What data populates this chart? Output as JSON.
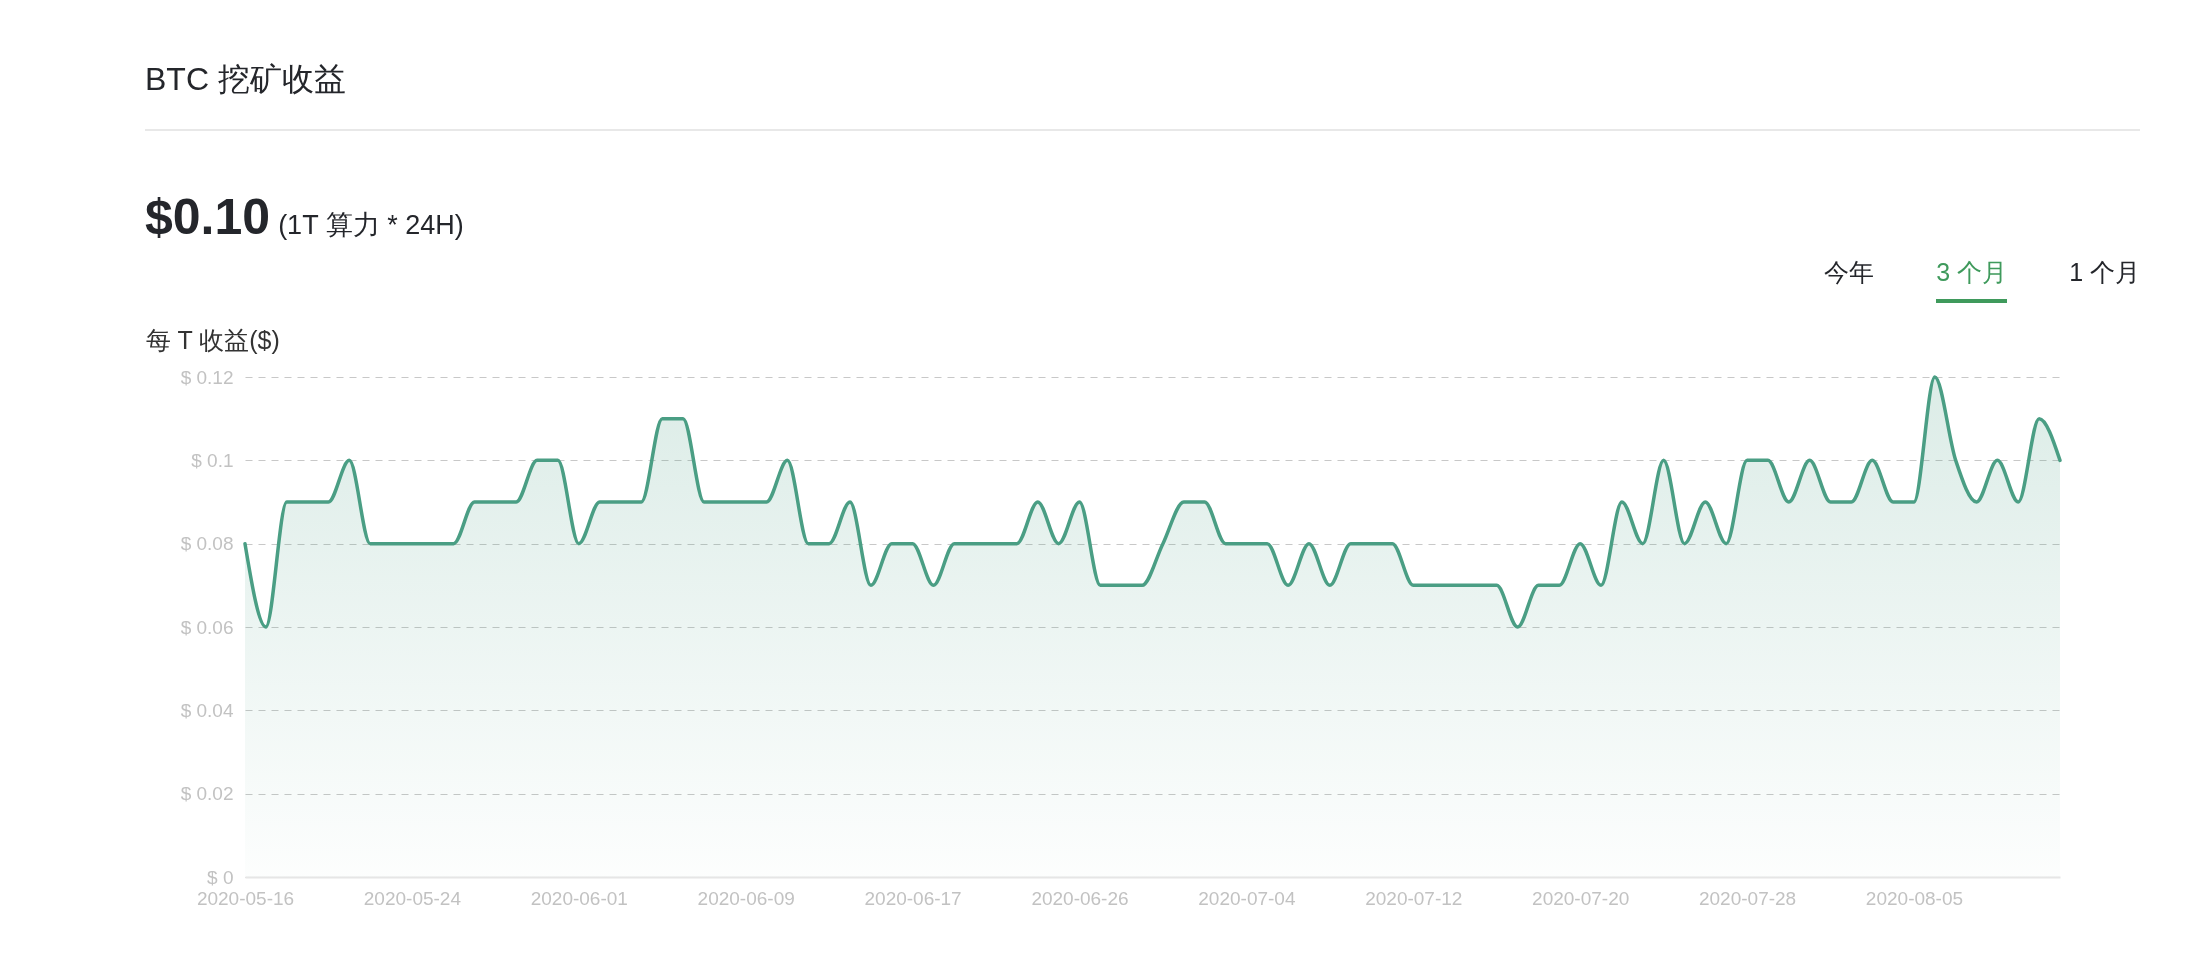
{
  "chart_data": {
    "type": "area",
    "title": "BTC 挖矿收益",
    "ylabel": "每 T 收益($)",
    "annotations": [
      "$0.10",
      "(1T 算力 * 24H)",
      "今年",
      "3 个月",
      "1 个月"
    ],
    "categories": [
      "2020-05-16",
      null,
      null,
      null,
      null,
      null,
      null,
      null,
      "2020-05-24",
      null,
      null,
      null,
      null,
      null,
      null,
      null,
      "2020-06-01",
      null,
      null,
      null,
      null,
      null,
      null,
      null,
      "2020-06-09",
      null,
      null,
      null,
      null,
      null,
      null,
      null,
      "2020-06-17",
      null,
      null,
      null,
      null,
      null,
      null,
      null,
      "2020-06-26",
      null,
      null,
      null,
      null,
      null,
      null,
      null,
      "2020-07-04",
      null,
      null,
      null,
      null,
      null,
      null,
      null,
      "2020-07-12",
      null,
      null,
      null,
      null,
      null,
      null,
      null,
      "2020-07-20",
      null,
      null,
      null,
      null,
      null,
      null,
      null,
      "2020-07-28",
      null,
      null,
      null,
      null,
      null,
      null,
      null,
      "2020-08-05",
      null,
      null,
      null,
      null,
      null,
      null,
      null
    ],
    "series": [
      {
        "color": "#4a9e84",
        "values": [
          0.08,
          0.06,
          0.09,
          0.09,
          0.09,
          0.1,
          0.08,
          0.08,
          0.08,
          0.08,
          0.08,
          0.09,
          0.09,
          0.09,
          0.1,
          0.1,
          0.08,
          0.09,
          0.09,
          0.09,
          0.11,
          0.11,
          0.09,
          0.09,
          0.09,
          0.09,
          0.1,
          0.08,
          0.08,
          0.09,
          0.07,
          0.08,
          0.08,
          0.07,
          0.08,
          0.08,
          0.08,
          0.08,
          0.09,
          0.08,
          0.09,
          0.07,
          0.07,
          0.07,
          0.08,
          0.09,
          0.09,
          0.08,
          0.08,
          0.08,
          0.07,
          0.08,
          0.07,
          0.08,
          0.08,
          0.08,
          0.07,
          0.07,
          0.07,
          0.07,
          0.07,
          0.06,
          0.07,
          0.07,
          0.08,
          0.07,
          0.09,
          0.08,
          0.1,
          0.08,
          0.09,
          0.08,
          0.1,
          0.1,
          0.09,
          0.1,
          0.09,
          0.09,
          0.1,
          0.09,
          0.09,
          0.12,
          0.1,
          0.09,
          0.1,
          0.09,
          0.11,
          0.1
        ]
      }
    ],
    "ylim": [
      0,
      0.12
    ],
    "yticks": [
      {
        "value": 0,
        "label": "$ 0"
      },
      {
        "value": 0.02,
        "label": "$ 0.02"
      },
      {
        "value": 0.04,
        "label": "$ 0.04"
      },
      {
        "value": 0.06,
        "label": "$ 0.06"
      },
      {
        "value": 0.08,
        "label": "$ 0.08"
      },
      {
        "value": 0.1,
        "label": "$ 0.1"
      },
      {
        "value": 0.12,
        "label": "$ 0.12"
      }
    ],
    "grid": "y"
  }
}
